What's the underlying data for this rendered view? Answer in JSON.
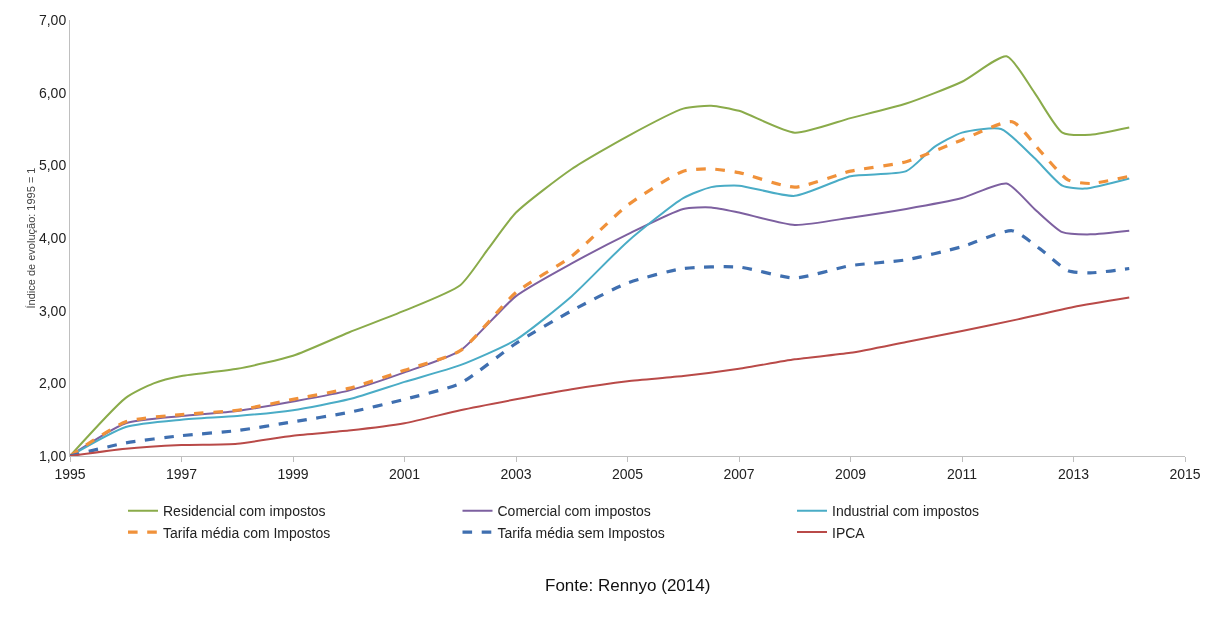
{
  "chart_data": {
    "type": "line",
    "ylabel": "Índice de evolução: 1995 = 1",
    "annotations": [
      "Fonte: Rennyo (2014)"
    ],
    "xlim": [
      1995,
      2015
    ],
    "xticks": [
      1995,
      1997,
      1999,
      2001,
      2003,
      2005,
      2007,
      2009,
      2011,
      2013,
      2015
    ],
    "ylim": [
      1,
      7
    ],
    "yticks": [
      {
        "value": 1,
        "label": "1,00"
      },
      {
        "value": 2,
        "label": "2,00"
      },
      {
        "value": 3,
        "label": "3,00"
      },
      {
        "value": 4,
        "label": "4,00"
      },
      {
        "value": 5,
        "label": "5,00"
      },
      {
        "value": 6,
        "label": "6,00"
      },
      {
        "value": 7,
        "label": "7,00"
      }
    ],
    "grid": false,
    "legend": "bottom",
    "marker": "none",
    "series": [
      {
        "name": "Residencial com impostos",
        "color": "#8aab4a",
        "line_style": "solid",
        "x": [
          1995,
          1996,
          1996.5,
          1997,
          1998,
          1999,
          2000,
          2001,
          2002,
          2002.5,
          2003,
          2004,
          2005,
          2006,
          2006.5,
          2007,
          2008,
          2009,
          2010,
          2011,
          2011.8,
          2012.3,
          2012.8,
          2013.3,
          2014
        ],
        "values": [
          1.0,
          1.8,
          2.0,
          2.1,
          2.2,
          2.38,
          2.7,
          3.0,
          3.35,
          3.85,
          4.35,
          4.95,
          5.4,
          5.78,
          5.82,
          5.75,
          5.45,
          5.65,
          5.85,
          6.15,
          6.5,
          6.0,
          5.45,
          5.42,
          5.52
        ]
      },
      {
        "name": "Comercial com impostos",
        "color": "#7d60a0",
        "line_style": "solid",
        "x": [
          1995,
          1996,
          1997,
          1998,
          1999,
          2000,
          2001,
          2002,
          2003,
          2004,
          2005,
          2006,
          2006.5,
          2007,
          2008,
          2009,
          2010,
          2011,
          2011.8,
          2012.3,
          2012.8,
          2013.3,
          2014
        ],
        "values": [
          1.0,
          1.45,
          1.55,
          1.62,
          1.75,
          1.9,
          2.15,
          2.45,
          3.2,
          3.65,
          4.05,
          4.4,
          4.42,
          4.35,
          4.18,
          4.28,
          4.4,
          4.55,
          4.75,
          4.4,
          4.08,
          4.05,
          4.1
        ]
      },
      {
        "name": "Industrial com impostos",
        "color": "#4aacc6",
        "line_style": "solid",
        "x": [
          1995,
          1996,
          1997,
          1998,
          1999,
          2000,
          2001,
          2002,
          2003,
          2004,
          2005,
          2006,
          2006.5,
          2007,
          2008,
          2009,
          2010,
          2010.5,
          2011,
          2011.7,
          2012.3,
          2012.8,
          2013.2,
          2014
        ],
        "values": [
          1.0,
          1.4,
          1.5,
          1.55,
          1.63,
          1.78,
          2.02,
          2.25,
          2.6,
          3.2,
          3.95,
          4.55,
          4.7,
          4.72,
          4.58,
          4.85,
          4.92,
          5.25,
          5.45,
          5.5,
          5.1,
          4.72,
          4.68,
          4.82
        ]
      },
      {
        "name": "Tarifa média com Impostos",
        "color": "#f0913a",
        "line_style": "dashed",
        "x": [
          1995,
          1996,
          1997,
          1998,
          1999,
          2000,
          2001,
          2002,
          2003,
          2004,
          2005,
          2006,
          2006.5,
          2007,
          2008,
          2009,
          2010,
          2011,
          2011.9,
          2012.4,
          2012.9,
          2013.3,
          2014
        ],
        "values": [
          1.0,
          1.47,
          1.57,
          1.63,
          1.78,
          1.93,
          2.18,
          2.45,
          3.25,
          3.75,
          4.45,
          4.92,
          4.95,
          4.9,
          4.7,
          4.92,
          5.05,
          5.35,
          5.6,
          5.2,
          4.8,
          4.75,
          4.85
        ]
      },
      {
        "name": "Tarifa média sem Impostos",
        "color": "#3f6fb0",
        "line_style": "dashed",
        "x": [
          1995,
          1996,
          1997,
          1998,
          1999,
          2000,
          2001,
          2002,
          2003,
          2004,
          2005,
          2006,
          2007,
          2008,
          2009,
          2010,
          2011,
          2011.9,
          2012.4,
          2012.9,
          2013.3,
          2014
        ],
        "values": [
          1.0,
          1.18,
          1.28,
          1.35,
          1.47,
          1.6,
          1.78,
          2.0,
          2.55,
          3.0,
          3.38,
          3.58,
          3.6,
          3.45,
          3.62,
          3.7,
          3.88,
          4.1,
          3.85,
          3.55,
          3.52,
          3.58
        ]
      },
      {
        "name": "IPCA",
        "color": "#b94a48",
        "line_style": "solid",
        "x": [
          1995,
          1996,
          1997,
          1998,
          1999,
          2000,
          2001,
          2002,
          2003,
          2004,
          2005,
          2006,
          2007,
          2008,
          2009,
          2010,
          2011,
          2012,
          2013,
          2014
        ],
        "values": [
          1.0,
          1.1,
          1.15,
          1.17,
          1.28,
          1.35,
          1.45,
          1.63,
          1.78,
          1.92,
          2.03,
          2.1,
          2.2,
          2.33,
          2.42,
          2.57,
          2.72,
          2.88,
          3.05,
          3.18
        ]
      }
    ]
  }
}
